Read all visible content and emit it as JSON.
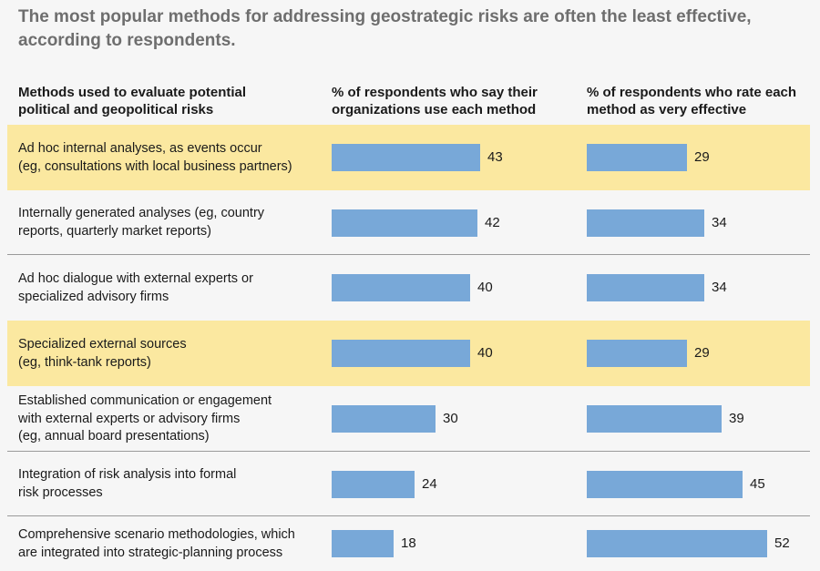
{
  "title": "The most popular methods for addressing geostrategic risks are often the least effective, according to respondents.",
  "headers": {
    "method": "Methods used to evaluate potential political and geopolitical risks",
    "use": "% of respondents who say their organizations use each method",
    "effective": "% of respondents who rate each method as very effective"
  },
  "chart_data": {
    "type": "bar",
    "orientation": "horizontal",
    "categories": [
      "Ad hoc internal analyses, as events occur\n(eg, consultations with local business partners)",
      "Internally generated analyses (eg, country\nreports, quarterly market reports)",
      "Ad hoc dialogue with external experts or\nspecialized advisory firms",
      "Specialized external sources\n(eg, think-tank reports)",
      "Established communication or engagement\nwith external experts or advisory firms\n(eg, annual board presentations)",
      "Integration of risk analysis into formal\nrisk processes",
      "Comprehensive scenario methodologies, which\nare integrated into strategic-planning process"
    ],
    "highlighted": [
      true,
      false,
      false,
      true,
      false,
      false,
      false
    ],
    "series": [
      {
        "name": "% of respondents who say their organizations use each method",
        "values": [
          43,
          42,
          40,
          40,
          30,
          24,
          18
        ],
        "color": "#78a8d8"
      },
      {
        "name": "% of respondents who rate each method as very effective",
        "values": [
          29,
          34,
          34,
          29,
          39,
          45,
          52
        ],
        "color": "#78a8d8"
      }
    ],
    "highlight_color": "#fbe8a0",
    "grid": false
  }
}
